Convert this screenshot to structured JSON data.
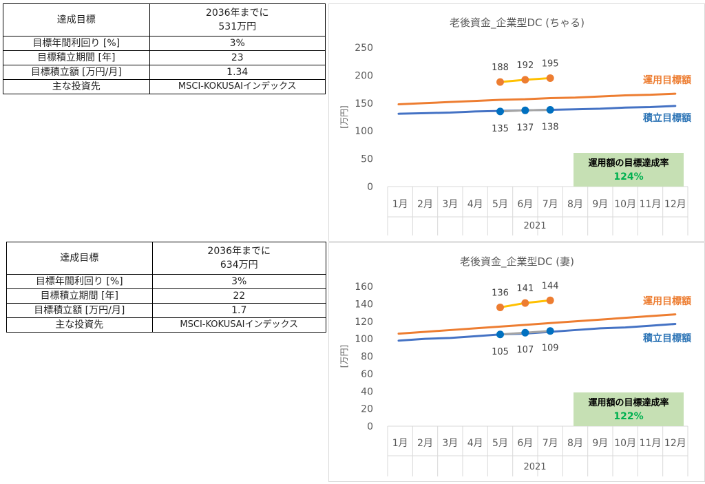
{
  "tables": [
    {
      "target_label": "達成目標",
      "target_line1": "2036年までに",
      "target_line2": "531万円",
      "rows": [
        {
          "label": "目標年間利回り [%]",
          "value": "3%"
        },
        {
          "label": "目標積立期間 [年]",
          "value": "23"
        },
        {
          "label": "目標積立額 [万円/月]",
          "value": "1.34"
        },
        {
          "label": "主な投資先",
          "value": "MSCI-KOKUSAIインデックス"
        }
      ]
    },
    {
      "target_label": "達成目標",
      "target_line1": "2036年までに",
      "target_line2": "634万円",
      "rows": [
        {
          "label": "目標年間利回り [%]",
          "value": "3%"
        },
        {
          "label": "目標積立期間 [年]",
          "value": "22"
        },
        {
          "label": "目標積立額 [万円/月]",
          "value": "1.7"
        },
        {
          "label": "主な投資先",
          "value": "MSCI-KOKUSAIインデックス"
        }
      ]
    }
  ],
  "chart_data": [
    {
      "type": "line",
      "title": "老後資金_企業型DC (ちゃる)",
      "ylabel": "[万円]",
      "xlabel": "2021",
      "categories": [
        "1月",
        "2月",
        "3月",
        "4月",
        "5月",
        "6月",
        "7月",
        "8月",
        "9月",
        "10月",
        "11月",
        "12月"
      ],
      "ylim": [
        0,
        250
      ],
      "yticks": [
        0,
        50,
        100,
        150,
        200,
        250
      ],
      "grid": false,
      "series": [
        {
          "name": "運用目標額",
          "color": "#ED7D31",
          "values": [
            148,
            150,
            152,
            154,
            156,
            157,
            159,
            160,
            162,
            164,
            165,
            167
          ]
        },
        {
          "name": "積立目標額",
          "color": "#4472C4",
          "values": [
            131,
            132,
            133,
            135,
            136,
            137,
            138,
            139,
            140,
            142,
            143,
            145
          ]
        },
        {
          "name": "",
          "color": "#FFC000",
          "marker_color": "#ED7D31",
          "labels_position": "above",
          "values": [
            null,
            null,
            null,
            null,
            188,
            192,
            195,
            null,
            null,
            null,
            null,
            null
          ]
        },
        {
          "name": "",
          "color": "#A5A5A5",
          "marker_color": "#0070C0",
          "labels_position": "below",
          "values": [
            null,
            null,
            null,
            null,
            135,
            137,
            138,
            null,
            null,
            null,
            null,
            null
          ]
        }
      ],
      "legend_labels": [
        {
          "text": "運用目標額",
          "color": "#ED7D31"
        },
        {
          "text": "積立目標額",
          "color": "#2E75B6"
        }
      ],
      "rate_box": {
        "title": "運用額の目標達成率",
        "value": "124%",
        "bg": "#C6E0B4",
        "value_color": "#00B050"
      }
    },
    {
      "type": "line",
      "title": "老後資金_企業型DC (妻)",
      "ylabel": "[万円]",
      "xlabel": "2021",
      "categories": [
        "1月",
        "2月",
        "3月",
        "4月",
        "5月",
        "6月",
        "7月",
        "8月",
        "9月",
        "10月",
        "11月",
        "12月"
      ],
      "ylim": [
        0,
        160
      ],
      "yticks": [
        0,
        20,
        40,
        60,
        80,
        100,
        120,
        140,
        160
      ],
      "grid": false,
      "series": [
        {
          "name": "運用目標額",
          "color": "#ED7D31",
          "values": [
            106,
            108,
            110,
            112,
            114,
            116,
            118,
            120,
            122,
            124,
            126,
            128
          ]
        },
        {
          "name": "積立目標額",
          "color": "#4472C4",
          "values": [
            98,
            100,
            101,
            103,
            105,
            106,
            108,
            110,
            112,
            113,
            115,
            117
          ]
        },
        {
          "name": "",
          "color": "#FFC000",
          "marker_color": "#ED7D31",
          "labels_position": "above",
          "values": [
            null,
            null,
            null,
            null,
            136,
            141,
            144,
            null,
            null,
            null,
            null,
            null
          ]
        },
        {
          "name": "",
          "color": "#A5A5A5",
          "marker_color": "#0070C0",
          "labels_position": "below",
          "values": [
            null,
            null,
            null,
            null,
            105,
            107,
            109,
            null,
            null,
            null,
            null,
            null
          ]
        }
      ],
      "legend_labels": [
        {
          "text": "運用目標額",
          "color": "#ED7D31"
        },
        {
          "text": "積立目標額",
          "color": "#2E75B6"
        }
      ],
      "rate_box": {
        "title": "運用額の目標達成率",
        "value": "122%",
        "bg": "#C6E0B4",
        "value_color": "#00B050"
      }
    }
  ]
}
